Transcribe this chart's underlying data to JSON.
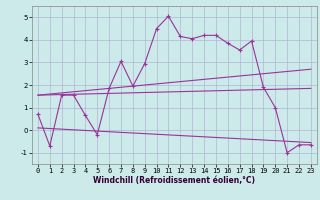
{
  "xlabel": "Windchill (Refroidissement éolien,°C)",
  "background_color": "#cceaea",
  "grid_color": "#aaaacc",
  "line_color": "#993399",
  "x_ticks": [
    0,
    1,
    2,
    3,
    4,
    5,
    6,
    7,
    8,
    9,
    10,
    11,
    12,
    13,
    14,
    15,
    16,
    17,
    18,
    19,
    20,
    21,
    22,
    23
  ],
  "ylim": [
    -1.5,
    5.5
  ],
  "xlim": [
    -0.5,
    23.5
  ],
  "series1_x": [
    0,
    1,
    2,
    3,
    4,
    5,
    6,
    7,
    8,
    9,
    10,
    11,
    12,
    13,
    14,
    15,
    16,
    17,
    18,
    19,
    20,
    21,
    22,
    23
  ],
  "series1_y": [
    0.7,
    -0.7,
    1.55,
    1.55,
    0.65,
    -0.2,
    1.85,
    3.05,
    1.95,
    2.95,
    4.5,
    5.05,
    4.15,
    4.05,
    4.2,
    4.2,
    3.85,
    3.55,
    3.95,
    1.9,
    1.0,
    -1.0,
    -0.65,
    -0.65
  ],
  "series2_x": [
    0,
    23
  ],
  "series2_y": [
    1.55,
    2.7
  ],
  "series3_x": [
    0,
    23
  ],
  "series3_y": [
    0.1,
    -0.55
  ],
  "series4_x": [
    0,
    23
  ],
  "series4_y": [
    1.55,
    1.85
  ],
  "yticks": [
    -1,
    0,
    1,
    2,
    3,
    4,
    5
  ],
  "xlabel_color": "#330033",
  "xlabel_fontsize": 5.5,
  "tick_fontsize": 5,
  "linewidth": 0.8,
  "marker_size": 3
}
